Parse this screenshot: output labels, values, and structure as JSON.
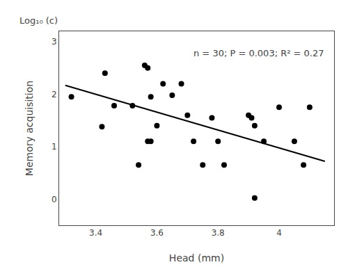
{
  "chart_data": {
    "type": "scatter",
    "xlabel": "Head (mm)",
    "ylabel": "Memory acquisition",
    "annotations": [
      "n = 30; P = 0.003; R² = 0.27",
      "Log₁₀ (c)"
    ],
    "series": [
      {
        "type": "scatter",
        "marker": "circle",
        "color": "#000000",
        "x": [
          3.32,
          3.42,
          3.43,
          3.46,
          3.52,
          3.54,
          3.56,
          3.57,
          3.57,
          3.58,
          3.58,
          3.6,
          3.62,
          3.65,
          3.68,
          3.7,
          3.72,
          3.75,
          3.78,
          3.8,
          3.82,
          3.9,
          3.91,
          3.92,
          3.92,
          3.95,
          4.0,
          4.05,
          4.08,
          4.1
        ],
        "values": [
          1.95,
          1.38,
          2.4,
          1.78,
          1.78,
          0.65,
          2.55,
          2.5,
          1.1,
          1.95,
          1.1,
          1.4,
          2.2,
          1.98,
          2.2,
          1.6,
          1.1,
          0.65,
          1.55,
          1.1,
          0.65,
          1.6,
          1.55,
          0.02,
          1.4,
          1.1,
          1.75,
          1.1,
          0.65,
          1.75
        ]
      },
      {
        "type": "line",
        "line_style": "solid",
        "color": "#000000",
        "x": [
          3.3,
          4.15
        ],
        "values": [
          2.17,
          0.72
        ]
      }
    ],
    "xlim": [
      3.28,
      4.18
    ],
    "ylim": [
      -0.5,
      3.2
    ],
    "xticks": [
      3.4,
      3.6,
      3.8,
      4.0
    ],
    "yticks": [
      0,
      1,
      2,
      3
    ],
    "grid": false
  }
}
